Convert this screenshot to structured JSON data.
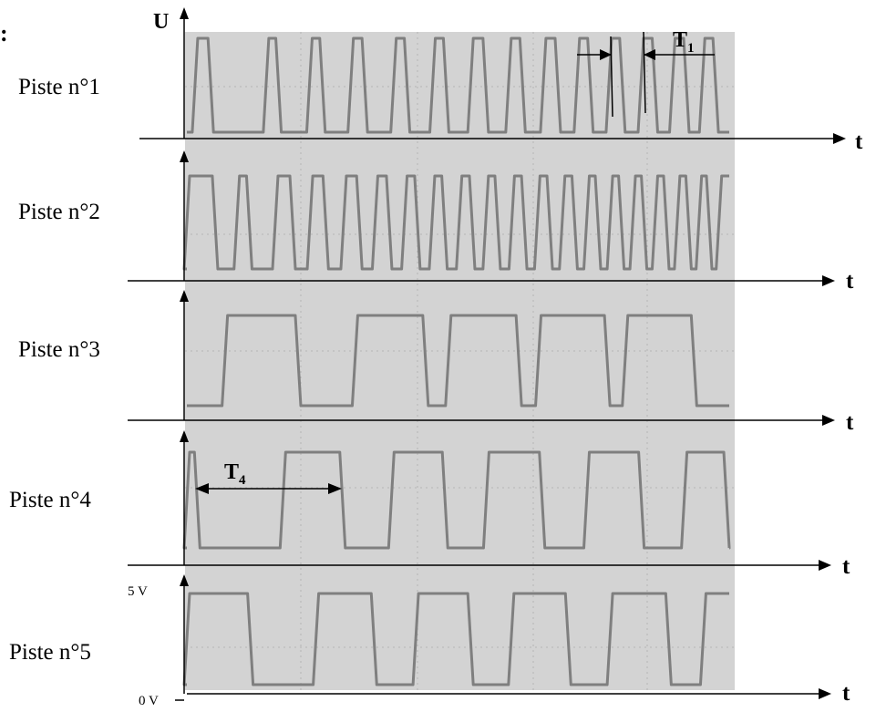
{
  "figure": {
    "u_axis_label": "U",
    "time_axis_label": "t",
    "edge_mark": ":",
    "voltage_high": "5 V",
    "voltage_low": "0 V",
    "period_1": {
      "symbol": "T",
      "subscript": "1"
    },
    "period_4": {
      "symbol": "T",
      "subscript": "4"
    },
    "colors": {
      "screen": "#d3d3d3",
      "trace": "#7f7f7f",
      "grid": "#b4b4b4",
      "axis": "#000000"
    }
  },
  "tracks": [
    {
      "label": "Piste n°1",
      "edges": [
        0.015,
        0.044,
        0.146,
        0.169,
        0.226,
        0.25,
        0.302,
        0.328,
        0.381,
        0.406,
        0.453,
        0.478,
        0.523,
        0.551,
        0.593,
        0.619,
        0.657,
        0.684,
        0.719,
        0.744,
        0.778,
        0.803,
        0.837,
        0.863,
        0.895,
        0.921,
        0.95,
        0.975
      ]
    },
    {
      "label": "Piste n°2",
      "edges": [
        0.0,
        0.052,
        0.092,
        0.115,
        0.163,
        0.195,
        0.227,
        0.256,
        0.289,
        0.318,
        0.347,
        0.373,
        0.401,
        0.425,
        0.452,
        0.475,
        0.502,
        0.526,
        0.551,
        0.573,
        0.599,
        0.622,
        0.646,
        0.669,
        0.692,
        0.715,
        0.737,
        0.758,
        0.78,
        0.801,
        0.822,
        0.843,
        0.863,
        0.884,
        0.904,
        0.925,
        0.944,
        0.963,
        0.981
      ]
    },
    {
      "label": "Piste n°3",
      "edges": [
        0.07,
        0.205,
        0.31,
        0.44,
        0.482,
        0.612,
        0.648,
        0.775,
        0.808,
        0.935
      ]
    },
    {
      "label": "Piste n°4",
      "edges": [
        0.0,
        0.019,
        0.177,
        0.287,
        0.377,
        0.476,
        0.552,
        0.655,
        0.737,
        0.838,
        0.917,
        0.995
      ]
    },
    {
      "label": "Piste n°5",
      "edges": [
        0.0,
        0.117,
        0.238,
        0.345,
        0.422,
        0.523,
        0.598,
        0.703,
        0.78,
        0.888,
        0.952
      ]
    }
  ]
}
